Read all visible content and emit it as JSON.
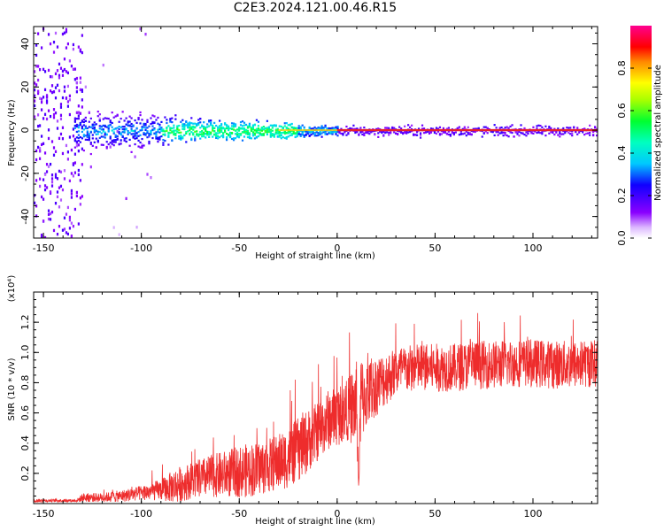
{
  "title": "C2E3.2024.121.00.46.R15",
  "colors": {
    "snr_line": "#ee2c2c",
    "frame": "#000000",
    "spectrum_line": "#e8202a"
  },
  "chart_data": [
    {
      "type": "heatmap",
      "xlabel": "Height of straight line (km)",
      "ylabel": "Frequency (Hz)",
      "xlim": [
        -155,
        133
      ],
      "ylim": [
        -50,
        48
      ],
      "x_ticks": [
        -150,
        -100,
        -50,
        0,
        50,
        100
      ],
      "y_ticks": [
        -40,
        -20,
        0,
        20,
        40
      ],
      "colorbar": {
        "label": "Normalized spectral amplitude",
        "range": [
          0.0,
          1.0
        ],
        "ticks": [
          0.0,
          0.2,
          0.4,
          0.6,
          0.8
        ],
        "colormap": "rainbow (white→violet→blue→cyan→green→yellow→red→magenta)"
      },
      "features": {
        "dominant_line_frequency_hz": 0,
        "dominant_line_from_height_km": 0,
        "broad_noise_region_km": [
          -155,
          -130
        ],
        "high_amplitude_band_km": [
          -90,
          -20
        ]
      }
    },
    {
      "type": "line",
      "xlabel": "Height of straight line (km)",
      "ylabel": "SNR (10 * v/v)",
      "y_multiplier": "(x10⁴)",
      "xlim": [
        -155,
        133
      ],
      "ylim": [
        0,
        1.4
      ],
      "x_ticks": [
        -150,
        -100,
        -50,
        0,
        50,
        100
      ],
      "y_ticks": [
        0.2,
        0.4,
        0.6,
        0.8,
        1.0,
        1.2
      ],
      "series": [
        {
          "x": [
            -155,
            -140,
            -133,
            -130,
            -120,
            -110,
            -100,
            -90,
            -82,
            -75,
            -65,
            -55,
            -45,
            -35,
            -25,
            -18,
            -12,
            -5,
            0,
            5,
            10,
            11,
            12,
            15,
            20,
            25,
            30,
            40,
            50,
            60,
            70,
            80,
            90,
            100,
            110,
            120,
            133
          ],
          "y": [
            0.02,
            0.02,
            0.02,
            0.04,
            0.04,
            0.05,
            0.07,
            0.09,
            0.12,
            0.15,
            0.18,
            0.2,
            0.22,
            0.25,
            0.3,
            0.38,
            0.45,
            0.55,
            0.58,
            0.62,
            0.65,
            0.1,
            0.68,
            0.72,
            0.78,
            0.83,
            0.87,
            0.9,
            0.9,
            0.9,
            0.92,
            0.92,
            0.93,
            0.93,
            0.92,
            0.92,
            0.93
          ],
          "noise_amplitude": [
            0.01,
            0.01,
            0.01,
            0.03,
            0.03,
            0.04,
            0.05,
            0.07,
            0.12,
            0.12,
            0.14,
            0.16,
            0.18,
            0.18,
            0.2,
            0.22,
            0.2,
            0.2,
            0.2,
            0.2,
            0.3,
            0.0,
            0.3,
            0.22,
            0.2,
            0.18,
            0.16,
            0.16,
            0.16,
            0.16,
            0.16,
            0.16,
            0.16,
            0.16,
            0.16,
            0.16,
            0.16
          ]
        }
      ]
    }
  ]
}
